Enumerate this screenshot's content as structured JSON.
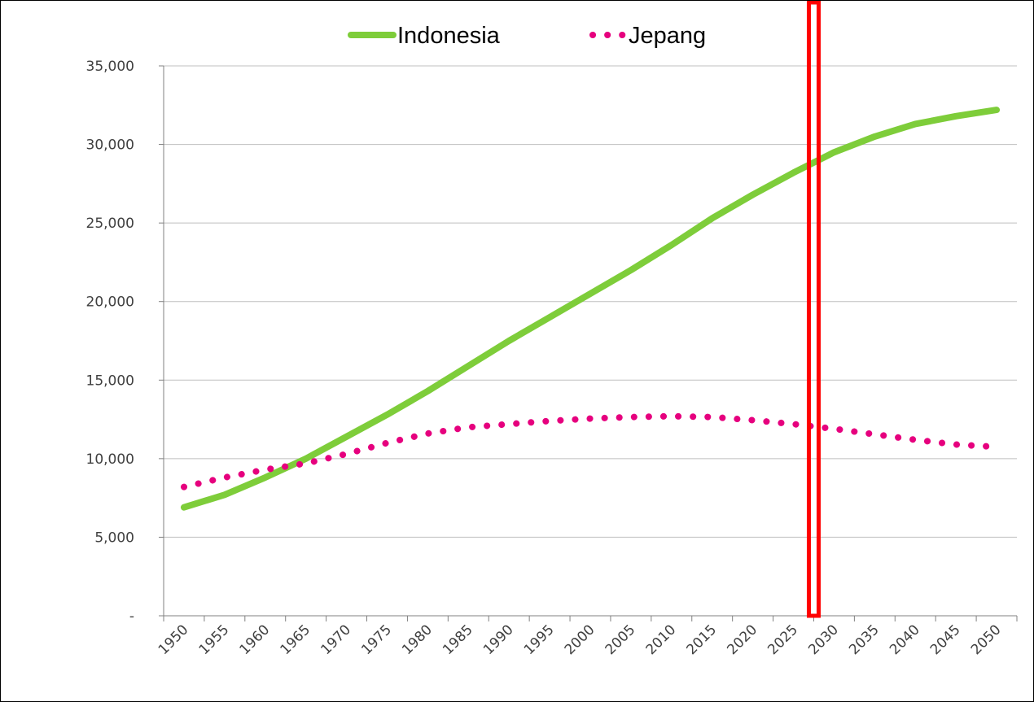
{
  "chart_data": {
    "type": "line",
    "title": "",
    "xlabel": "",
    "ylabel": "",
    "ylim": [
      0,
      35000
    ],
    "yticks": [
      0,
      5000,
      10000,
      15000,
      20000,
      25000,
      30000,
      35000
    ],
    "ytick_labels": [
      "-",
      "5,000",
      "10,000",
      "15,000",
      "20,000",
      "25,000",
      "30,000",
      "35,000"
    ],
    "categories": [
      "1950",
      "1955",
      "1960",
      "1965",
      "1970",
      "1975",
      "1980",
      "1985",
      "1990",
      "1995",
      "2000",
      "2005",
      "2010",
      "2015",
      "2020",
      "2025",
      "2030",
      "2035",
      "2040",
      "2045",
      "2050"
    ],
    "grid": true,
    "legend_position": "top-center",
    "series": [
      {
        "name": "Indonesia",
        "style": "solid",
        "color": "#7ecd3a",
        "values": [
          6900,
          7700,
          8800,
          10000,
          11400,
          12800,
          14300,
          15900,
          17500,
          19000,
          20500,
          22000,
          23600,
          25300,
          26800,
          28200,
          29500,
          30500,
          31300,
          31800,
          32200
        ]
      },
      {
        "name": "Jepang",
        "style": "dotted",
        "color": "#e6007e",
        "values": [
          8200,
          8800,
          9300,
          9700,
          10300,
          11000,
          11600,
          12000,
          12200,
          12400,
          12550,
          12650,
          12700,
          12650,
          12450,
          12200,
          11900,
          11550,
          11200,
          10900,
          10750
        ]
      }
    ],
    "highlight": {
      "category": "2030",
      "color": "#ff0000"
    }
  }
}
